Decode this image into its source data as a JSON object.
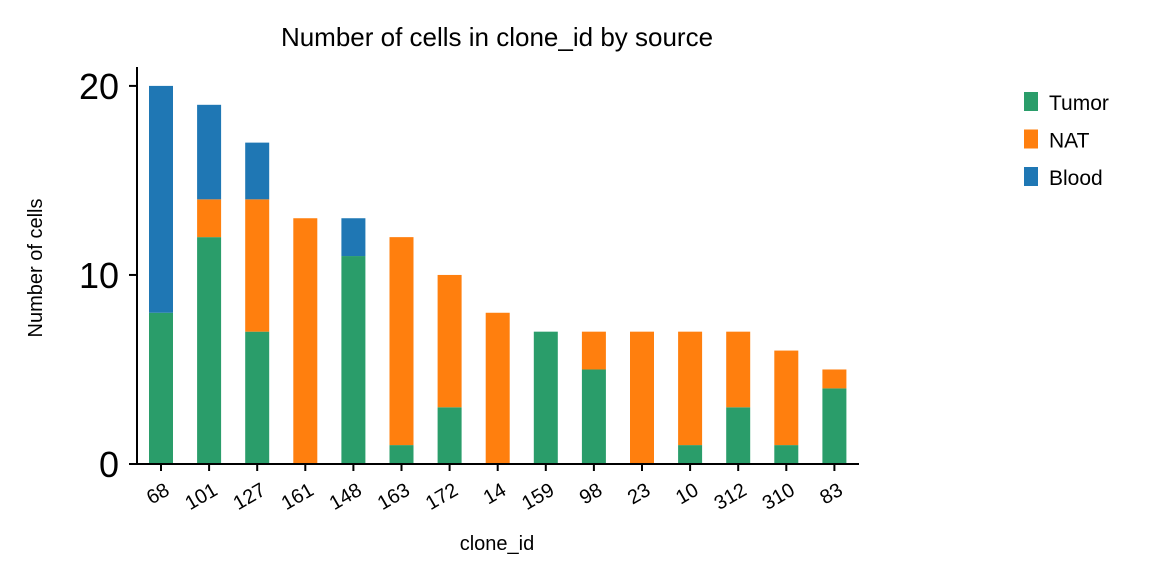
{
  "chart_data": {
    "type": "bar",
    "stacked": true,
    "title": "Number of cells in clone_id by source",
    "xlabel": "clone_id",
    "ylabel": "Number of cells",
    "ylim": [
      0,
      21
    ],
    "yticks": [
      0,
      10,
      20
    ],
    "categories": [
      "68",
      "101",
      "127",
      "161",
      "148",
      "163",
      "172",
      "14",
      "159",
      "98",
      "23",
      "10",
      "312",
      "310",
      "83"
    ],
    "series": [
      {
        "name": "Tumor",
        "color": "#2a9d6a",
        "values": [
          8,
          12,
          7,
          0,
          11,
          1,
          3,
          0,
          7,
          5,
          0,
          1,
          3,
          1,
          4
        ]
      },
      {
        "name": "NAT",
        "color": "#ff7f0e",
        "values": [
          0,
          2,
          7,
          13,
          0,
          11,
          7,
          8,
          0,
          2,
          7,
          6,
          4,
          5,
          1
        ]
      },
      {
        "name": "Blood",
        "color": "#1f77b4",
        "values": [
          12,
          5,
          3,
          0,
          2,
          0,
          0,
          0,
          0,
          0,
          0,
          0,
          0,
          0,
          0
        ]
      }
    ],
    "legend_position": "right"
  }
}
